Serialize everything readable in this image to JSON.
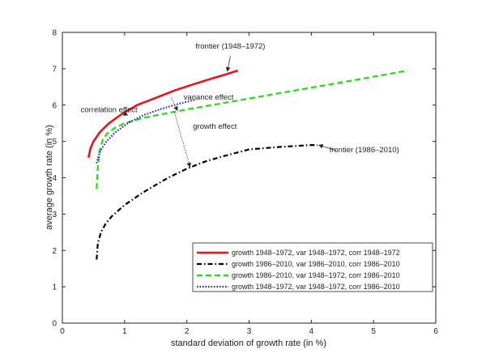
{
  "chart_data": {
    "type": "line",
    "xlabel": "standard deviation of growth rate (in %)",
    "ylabel": "average growth rate (in %)",
    "xlim": [
      0,
      6
    ],
    "ylim": [
      0,
      8
    ],
    "xticks": [
      0,
      1,
      2,
      3,
      4,
      5,
      6
    ],
    "yticks": [
      0,
      1,
      2,
      3,
      4,
      5,
      6,
      7,
      8
    ],
    "grid": false,
    "legend_position": "bottom-right",
    "series": [
      {
        "name": "growth 1948–1972, var 1948–1972, corr 1948–1972",
        "color": "#e8141a",
        "style": "solid",
        "x": [
          0.42,
          0.45,
          0.5,
          0.6,
          0.75,
          0.95,
          1.2,
          1.5,
          1.8,
          2.1,
          2.4,
          2.6,
          2.82
        ],
        "y": [
          4.55,
          4.8,
          5.0,
          5.25,
          5.5,
          5.75,
          6.0,
          6.2,
          6.4,
          6.57,
          6.73,
          6.83,
          6.95
        ]
      },
      {
        "name": "growth 1986–2010, var 1986–2010, corr 1986–2010",
        "color": "#000000",
        "style": "dashdot",
        "x": [
          0.55,
          0.57,
          0.62,
          0.7,
          0.8,
          1.0,
          1.3,
          1.7,
          2.0,
          2.3,
          2.6,
          3.0,
          3.5,
          4.0,
          4.1
        ],
        "y": [
          1.75,
          2.2,
          2.5,
          2.75,
          2.95,
          3.25,
          3.6,
          4.0,
          4.25,
          4.45,
          4.6,
          4.78,
          4.85,
          4.9,
          4.9
        ]
      },
      {
        "name": "growth 1986–2010, var 1948–1972, corr 1986–2010",
        "color": "#22dd11",
        "style": "dashed",
        "x": [
          0.55,
          0.57,
          0.6,
          0.65,
          0.72,
          0.85,
          1.0,
          1.3,
          1.6,
          2.0,
          2.5,
          3.0,
          3.5,
          4.0,
          4.5,
          5.0,
          5.55
        ],
        "y": [
          3.7,
          4.3,
          4.75,
          5.05,
          5.22,
          5.38,
          5.5,
          5.65,
          5.75,
          5.88,
          6.03,
          6.18,
          6.33,
          6.48,
          6.63,
          6.78,
          6.95
        ]
      },
      {
        "name": "growth 1948–1972, var 1948–1972, corr 1986–2010",
        "color": "#1a1ad6",
        "style": "dotted",
        "x": [
          0.55,
          0.6,
          0.7,
          0.85,
          1.05,
          1.3,
          1.6,
          1.9,
          2.15
        ],
        "y": [
          4.4,
          4.7,
          4.98,
          5.25,
          5.5,
          5.72,
          5.9,
          6.05,
          6.15
        ]
      }
    ],
    "annotations": [
      {
        "text": "frontier (1948–1972)",
        "text_x": 2.7,
        "text_y": 7.55,
        "arrow_from_x": 2.7,
        "arrow_from_y": 7.35,
        "arrow_to_x": 2.65,
        "arrow_to_y": 6.93
      },
      {
        "text": "correlation effect",
        "text_x": 0.75,
        "text_y": 5.8,
        "arrow_from_x": 0.95,
        "arrow_from_y": 5.8,
        "arrow_to_x": 1.05,
        "arrow_to_y": 5.72
      },
      {
        "text": "variance effect",
        "text_x": 2.35,
        "text_y": 6.15,
        "arrow_from_x": 1.75,
        "arrow_from_y": 6.2,
        "arrow_to_x": 1.85,
        "arrow_to_y": 5.85
      },
      {
        "text": "growth effect",
        "text_x": 2.45,
        "text_y": 5.35,
        "arrow_from_x": 1.8,
        "arrow_from_y": 5.8,
        "arrow_to_x": 2.05,
        "arrow_to_y": 4.3
      },
      {
        "text": "frontier (1986–2010)",
        "text_x": 4.85,
        "text_y": 4.7,
        "arrow_from_x": 4.4,
        "arrow_from_y": 4.75,
        "arrow_to_x": 4.12,
        "arrow_to_y": 4.9
      }
    ]
  }
}
